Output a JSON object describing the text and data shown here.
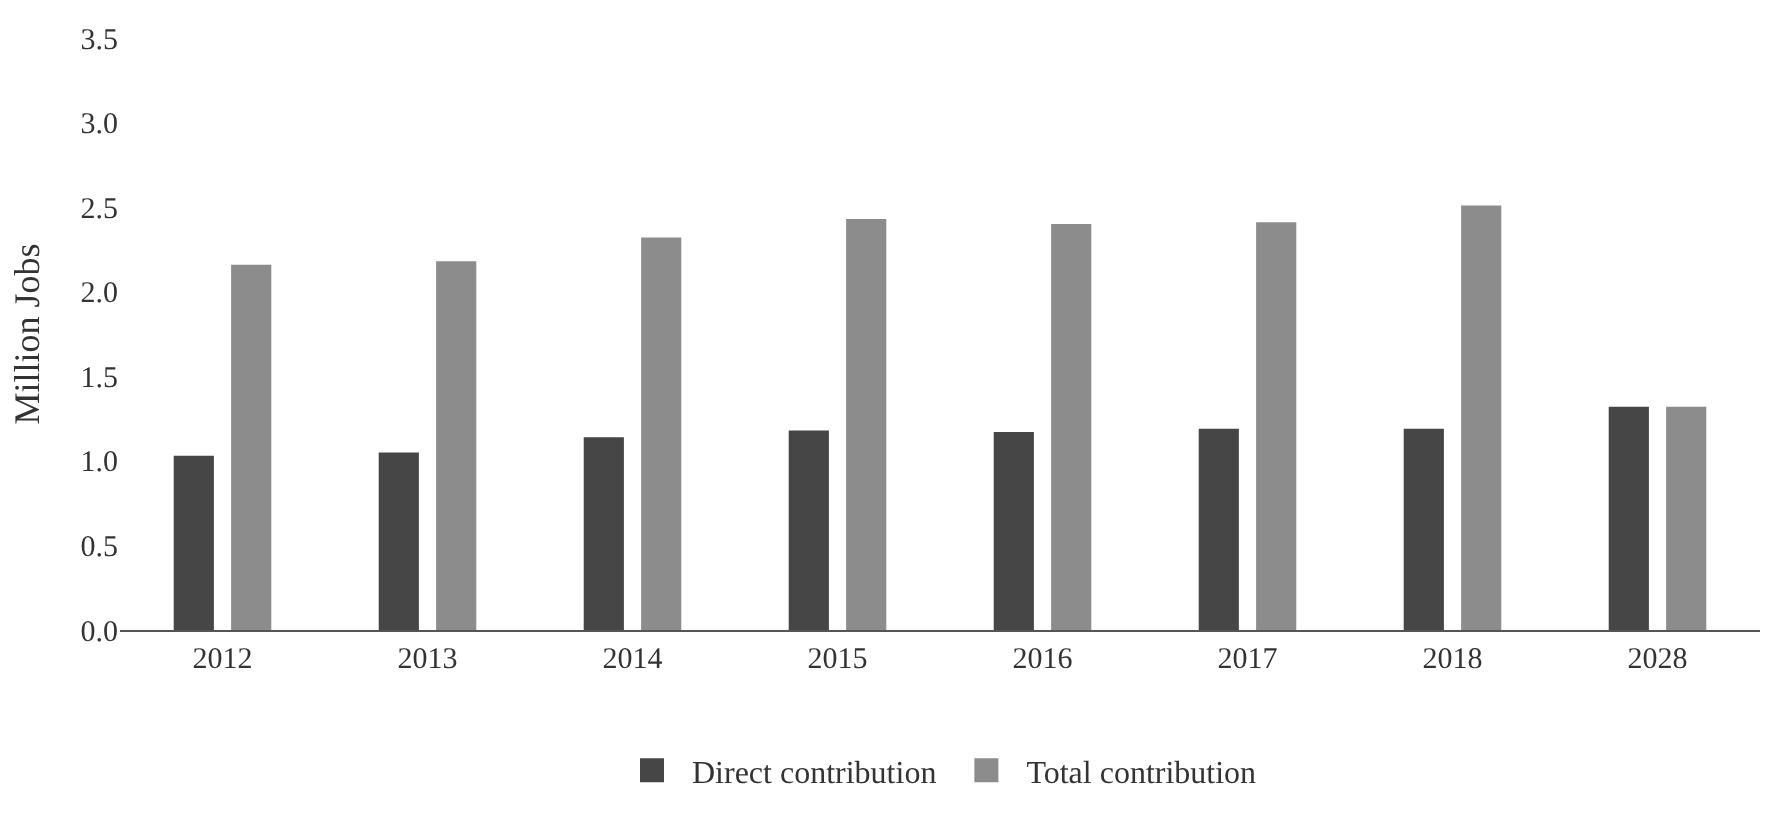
{
  "chart_data": {
    "type": "bar",
    "ylabel": "Million Jobs",
    "categories": [
      "2012",
      "2013",
      "2014",
      "2015",
      "2016",
      "2017",
      "2018",
      "2028"
    ],
    "series": [
      {
        "name": "Direct contribution",
        "color": "#464646",
        "values": [
          1.03,
          1.05,
          1.14,
          1.18,
          1.17,
          1.19,
          1.19,
          1.32
        ]
      },
      {
        "name": "Total contribution",
        "color": "#8c8c8c",
        "values": [
          2.16,
          2.18,
          2.32,
          2.43,
          2.4,
          2.41,
          2.51,
          1.32
        ]
      }
    ],
    "ylim": [
      0,
      3.5
    ],
    "yticks": [
      {
        "value": 0,
        "label": "0.0"
      },
      0.5,
      {
        "value": 1,
        "label": "1.0"
      },
      1.5,
      {
        "value": 2,
        "label": "2.0"
      },
      2.5,
      {
        "value": 3,
        "label": "3.0"
      },
      3.5
    ],
    "grid": false,
    "legend": "bottom"
  }
}
